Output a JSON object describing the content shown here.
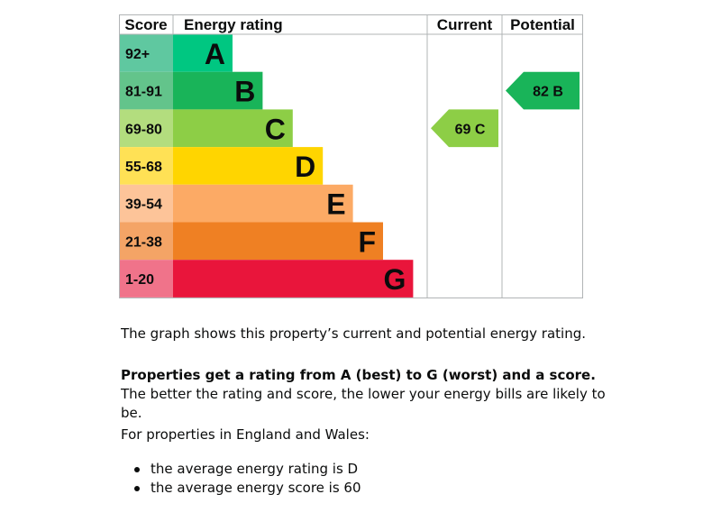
{
  "chart_data": {
    "type": "bar",
    "headers": {
      "score": "Score",
      "rating": "Energy rating",
      "current": "Current",
      "potential": "Potential"
    },
    "bands": [
      {
        "letter": "A",
        "range": "92+",
        "color": "#00c781",
        "score_color": "#5fc8a0"
      },
      {
        "letter": "B",
        "range": "81-91",
        "color": "#19b459",
        "score_color": "#63c48b"
      },
      {
        "letter": "C",
        "range": "69-80",
        "color": "#8dce46",
        "score_color": "#b3dd7e"
      },
      {
        "letter": "D",
        "range": "55-68",
        "color": "#ffd500",
        "score_color": "#ffe155"
      },
      {
        "letter": "E",
        "range": "39-54",
        "color": "#fcaa65",
        "score_color": "#fdc499"
      },
      {
        "letter": "F",
        "range": "21-38",
        "color": "#ef8023",
        "score_color": "#f4a466"
      },
      {
        "letter": "G",
        "range": "1-20",
        "color": "#e9153b",
        "score_color": "#f0738a"
      }
    ],
    "current": {
      "score": 69,
      "band": "C",
      "label": "69 C",
      "color": "#8dce46"
    },
    "potential": {
      "score": 82,
      "band": "B",
      "label": "82 B",
      "color": "#19b459"
    }
  },
  "text": {
    "intro": "The graph shows this property’s current and potential energy rating.",
    "rating_bold": "Properties get a rating from A (best) to G (worst) and a score.",
    "rating_rest": " The better the rating and score, the lower your energy bills are likely to be.",
    "region": "For properties in England and Wales:",
    "bullets": [
      "the average energy rating is D",
      "the average energy score is 60"
    ]
  }
}
